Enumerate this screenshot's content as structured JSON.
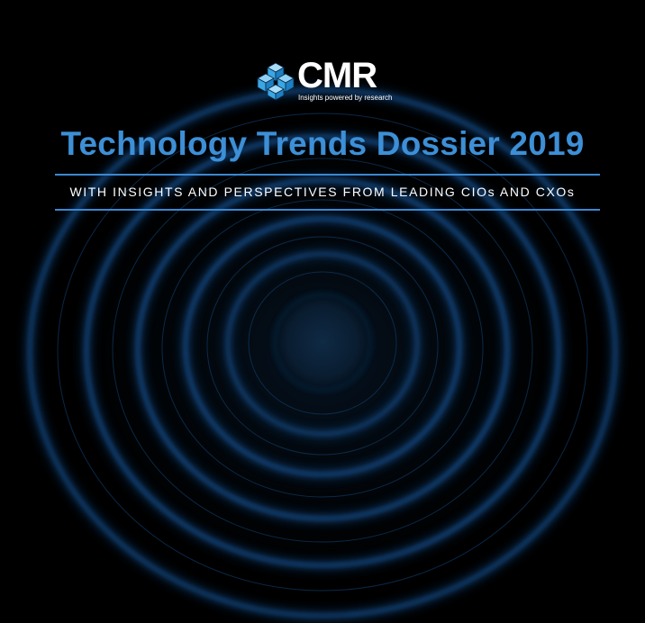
{
  "logo": {
    "icon": "cube-cluster-icon",
    "wordmark": "CMR",
    "tagline": "Insights powered by research"
  },
  "cover": {
    "title": "Technology Trends Dossier 2019",
    "subtitle": "WITH INSIGHTS AND PERSPECTIVES FROM LEADING CIOs AND CXOs"
  },
  "colors": {
    "background": "#000000",
    "accent": "#3d8fd6",
    "ring_glow": "#1a78e0",
    "text": "#ffffff"
  }
}
